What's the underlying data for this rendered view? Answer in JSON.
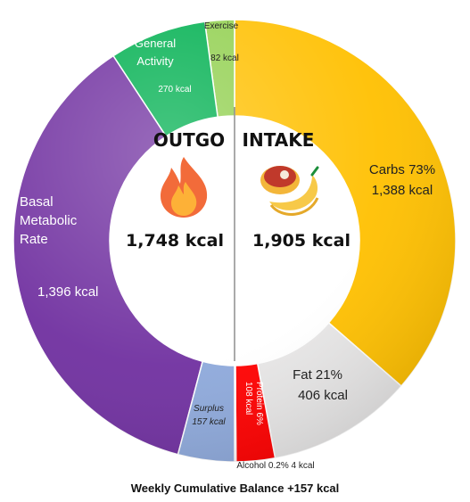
{
  "chart_data": {
    "type": "donut",
    "title": "Weekly Cumulative Balance +157 kcal",
    "outgo": {
      "heading": "OUTGO",
      "total_label": "1,748 kcal",
      "icon": "fire-icon",
      "segments": [
        {
          "key": "bmr",
          "name_lines": [
            "Basal",
            "Metabolic",
            "Rate"
          ],
          "value_label": "1,396 kcal",
          "value": 1396,
          "color": "#7030A0"
        },
        {
          "key": "general",
          "name_lines": [
            "General",
            "Activity"
          ],
          "value_label": "270 kcal",
          "value": 270,
          "color": "#00B050"
        },
        {
          "key": "exercise",
          "name_lines": [
            "Exercise"
          ],
          "value_label": "82 kcal",
          "value": 82,
          "color": "#92D050"
        },
        {
          "key": "surplus",
          "name_lines": [
            "Surplus"
          ],
          "value_label": "157 kcal",
          "value": 157,
          "color": "#8EA9DB"
        }
      ]
    },
    "intake": {
      "heading": "INTAKE",
      "total_label": "1,905 kcal",
      "icon": "food-icon",
      "segments": [
        {
          "key": "carbs",
          "name_lines": [
            "Carbs 73%"
          ],
          "value_label": "1,388 kcal",
          "value": 1388,
          "color": "#FFC000"
        },
        {
          "key": "fat",
          "name_lines": [
            "Fat 21%"
          ],
          "value_label": "406 kcal",
          "value": 406,
          "color": "#E7E6E6"
        },
        {
          "key": "protein",
          "name_lines": [
            "Protein 6%"
          ],
          "value_label": "108 kcal",
          "value": 108,
          "color": "#FF0000"
        },
        {
          "key": "alcohol",
          "name_lines": [
            "Alcohol 0.2%"
          ],
          "value_label": "4 kcal",
          "value": 4,
          "color": "#FF0000"
        }
      ]
    }
  }
}
